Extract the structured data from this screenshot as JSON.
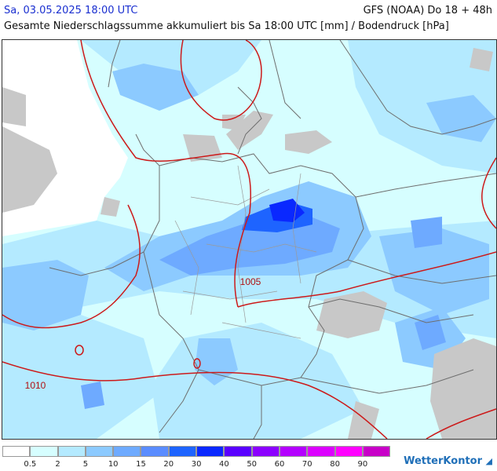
{
  "header": {
    "date": "Sa, 03.05.2025 18:00 UTC",
    "model": "GFS (NOAA) Do 18 + 48h",
    "subtitle": "Gesamte Niederschlagssumme akkumuliert bis Sa 18:00 UTC [mm] / Bodendruck [hPa]"
  },
  "isobar_labels": [
    "1005",
    "1010"
  ],
  "legend": {
    "ticks": [
      "0.5",
      "2",
      "5",
      "10",
      "15",
      "20",
      "30",
      "40",
      "50",
      "60",
      "70",
      "80",
      "90"
    ],
    "colors": [
      "#ffffff",
      "#d6feff",
      "#b4eaff",
      "#8ccaff",
      "#6eaaff",
      "#5a8cff",
      "#1e64ff",
      "#0a28ff",
      "#5a00ff",
      "#8c00ff",
      "#b400ff",
      "#dc00ff",
      "#ff00ff",
      "#c800c8"
    ]
  },
  "brand": "WetterKontor"
}
